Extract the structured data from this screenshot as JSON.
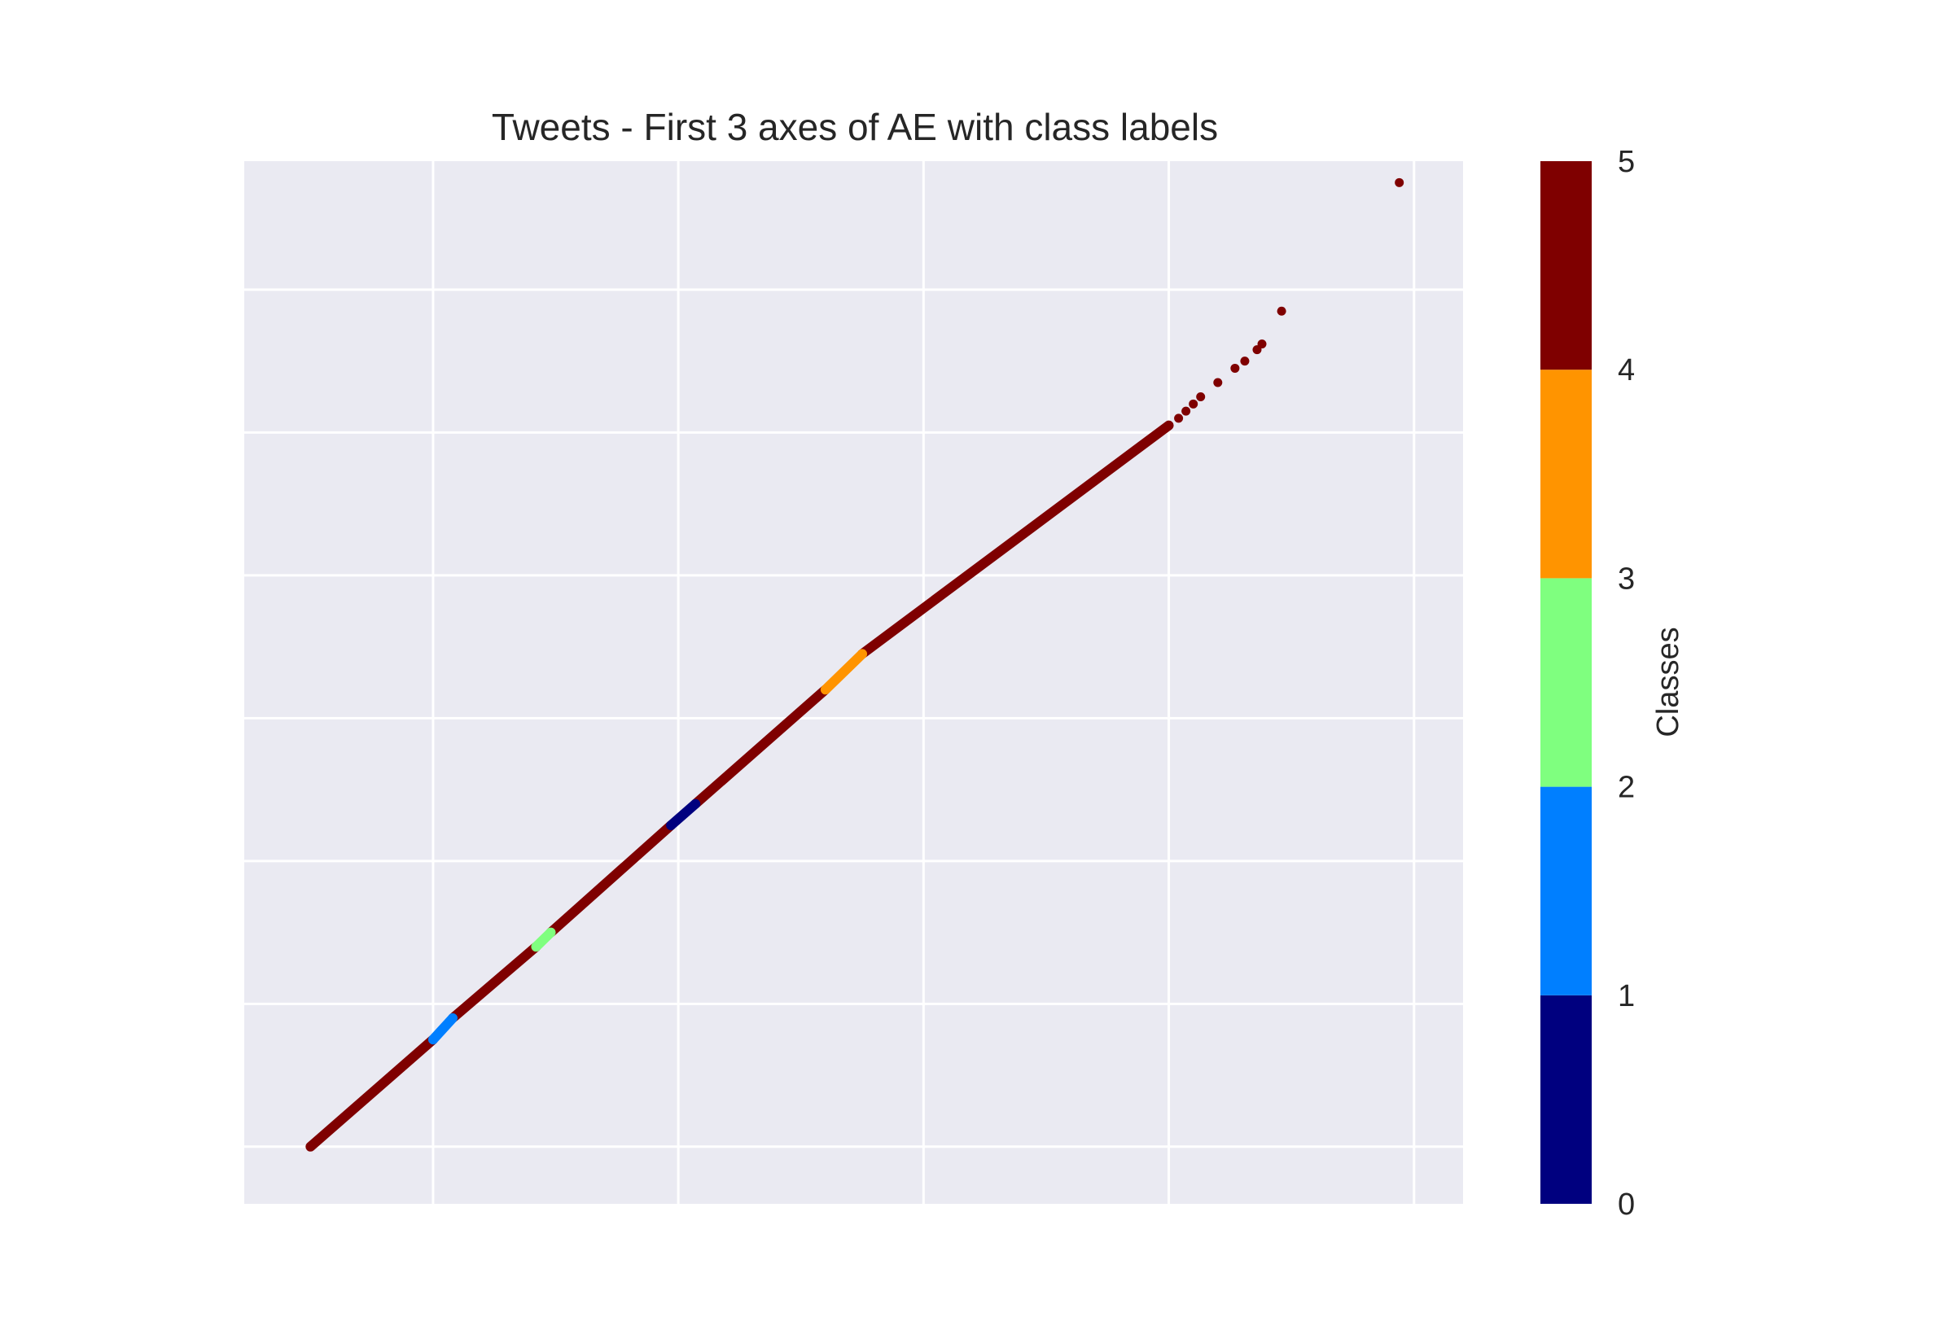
{
  "chart_data": {
    "type": "scatter",
    "title": "Tweets - First 3 axes of AE with class labels",
    "xlabel": "",
    "ylabel": "",
    "xlim": [
      -0.27,
      4.7
    ],
    "ylim": [
      -0.4,
      6.9
    ],
    "grid": true,
    "x_gridlines": [
      0.5,
      1.5,
      2.5,
      3.5,
      4.5
    ],
    "y_gridlines": [
      0,
      1,
      2,
      3,
      4,
      5,
      6
    ],
    "colorbar": {
      "label": "Classes",
      "ticks": [
        0,
        1,
        2,
        3,
        4,
        5
      ],
      "colors": [
        "#00007f",
        "#007fff",
        "#7fff7f",
        "#ff9400",
        "#7f0000"
      ]
    },
    "series": [
      {
        "class": 4,
        "segments": [
          [
            0,
            0,
            0.5,
            0.75
          ],
          [
            0.58,
            0.9,
            0.92,
            1.4
          ],
          [
            0.98,
            1.5,
            1.47,
            2.25
          ],
          [
            1.57,
            2.4,
            2.1,
            3.2
          ],
          [
            2.25,
            3.45,
            3.5,
            5.05
          ]
        ]
      },
      {
        "class": 1,
        "segments": [
          [
            0.5,
            0.75,
            0.58,
            0.9
          ]
        ]
      },
      {
        "class": 2,
        "segments": [
          [
            0.92,
            1.4,
            0.98,
            1.5
          ]
        ]
      },
      {
        "class": 0,
        "segments": [
          [
            1.47,
            2.25,
            1.57,
            2.4
          ]
        ]
      },
      {
        "class": 3,
        "segments": [
          [
            2.1,
            3.2,
            2.25,
            3.45
          ]
        ]
      }
    ],
    "points": [
      {
        "x": 3.46,
        "y": 5.0,
        "class": 4
      },
      {
        "x": 3.5,
        "y": 5.05,
        "class": 4
      },
      {
        "x": 3.54,
        "y": 5.1,
        "class": 4
      },
      {
        "x": 3.57,
        "y": 5.15,
        "class": 4
      },
      {
        "x": 3.6,
        "y": 5.2,
        "class": 4
      },
      {
        "x": 3.63,
        "y": 5.25,
        "class": 4
      },
      {
        "x": 3.7,
        "y": 5.35,
        "class": 4
      },
      {
        "x": 3.77,
        "y": 5.45,
        "class": 4
      },
      {
        "x": 3.81,
        "y": 5.5,
        "class": 4
      },
      {
        "x": 3.86,
        "y": 5.58,
        "class": 4
      },
      {
        "x": 3.88,
        "y": 5.62,
        "class": 4
      },
      {
        "x": 3.96,
        "y": 5.85,
        "class": 4
      },
      {
        "x": 4.44,
        "y": 6.75,
        "class": 4
      }
    ]
  }
}
